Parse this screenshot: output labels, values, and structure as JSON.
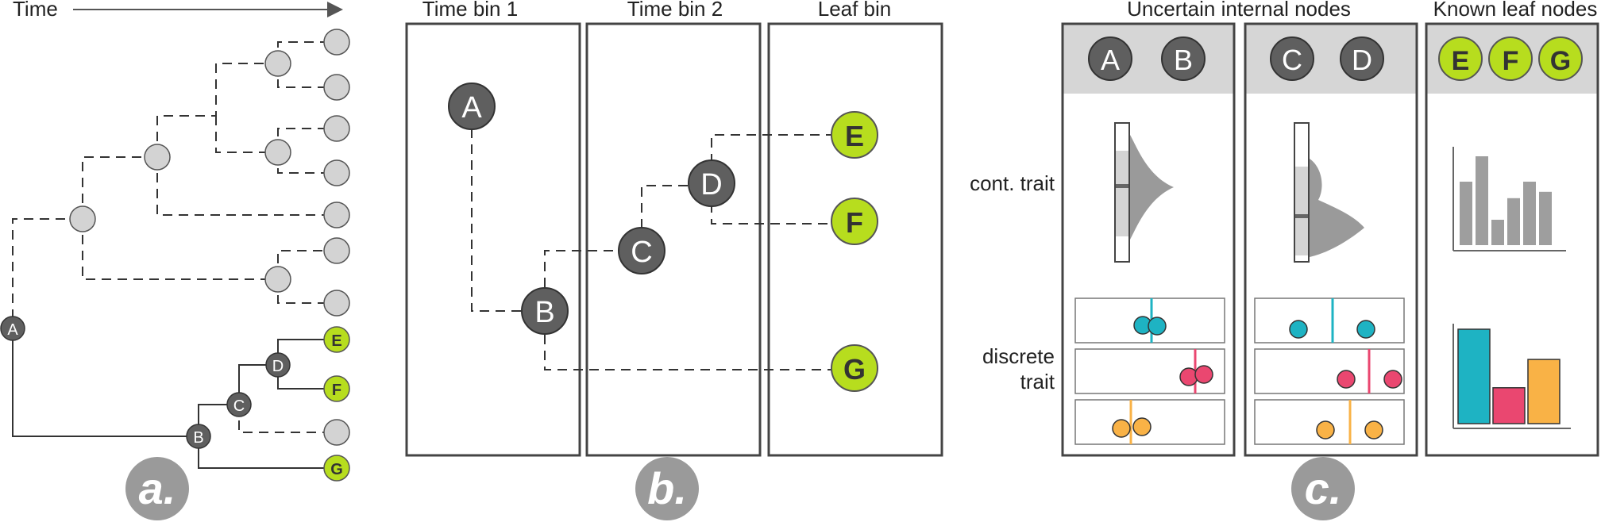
{
  "colors": {
    "dark_node": "#5f5f5f",
    "grey_node": "#d3d3d3",
    "leaf_node": "#b7dd1e",
    "badge": "#9a9a9a",
    "header_band": "#d6d6d6",
    "teal": "#1eb3c3",
    "pink": "#ea4770",
    "orange": "#f9b246",
    "bar_grey": "#9e9e9e",
    "density_grey": "#9a9a9a"
  },
  "panel_a": {
    "time_label": "Time",
    "badge": "a.",
    "nodes": {
      "A": "A",
      "B": "B",
      "C": "C",
      "D": "D",
      "E": "E",
      "F": "F",
      "G": "G"
    }
  },
  "panel_b": {
    "headers": [
      "Time bin 1",
      "Time bin 2",
      "Leaf bin"
    ],
    "badge": "b.",
    "nodes": {
      "A": "A",
      "B": "B",
      "C": "C",
      "D": "D",
      "E": "E",
      "F": "F",
      "G": "G"
    }
  },
  "panel_c": {
    "header_uncertain": "Uncertain internal nodes",
    "header_known": "Known leaf nodes",
    "row_cont": "cont. trait",
    "row_discrete_1": "discrete",
    "row_discrete_2": "trait",
    "badge": "c.",
    "col1_nodes": [
      "A",
      "B"
    ],
    "col2_nodes": [
      "C",
      "D"
    ],
    "col3_nodes": [
      "E",
      "F",
      "G"
    ],
    "histogram_values": [
      5,
      7,
      2,
      3.7,
      5,
      4.2
    ],
    "categorical_bars": [
      {
        "name": "teal",
        "value": 10
      },
      {
        "name": "pink",
        "value": 3.8
      },
      {
        "name": "orange",
        "value": 6.8
      }
    ]
  }
}
